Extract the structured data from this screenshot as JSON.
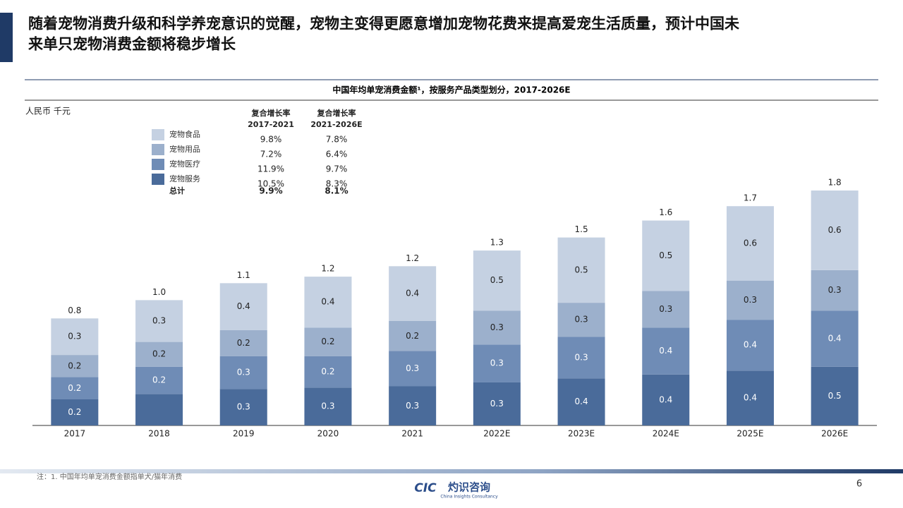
{
  "header": {
    "title": [
      "随着宠物消费升级和科学养宠意识的觉醒，宠物主变得更愿意增加宠物花费来提高爱宠生活质量，预计中国未",
      "来单只宠物消费金额将稳步增长"
    ]
  },
  "chart_data": {
    "type": "stacked-bar",
    "title": "中国年均单宠消费金额¹，按服务产品类型划分，2017-2026E",
    "unit": "人民币 千元",
    "categories": [
      "2017",
      "2018",
      "2019",
      "2020",
      "2021",
      "2022E",
      "2023E",
      "2024E",
      "2025E",
      "2026E"
    ],
    "series": [
      {
        "name": "宠物食品",
        "color": "#c5d1e2",
        "values": [
          0.28,
          0.32,
          0.36,
          0.39,
          0.42,
          0.46,
          0.5,
          0.54,
          0.57,
          0.61
        ],
        "value_labels": [
          "0.3",
          "0.3",
          "0.4",
          "0.4",
          "0.4",
          "0.5",
          "0.5",
          "0.5",
          "0.6",
          "0.6"
        ]
      },
      {
        "name": "宠物用品",
        "color": "#9cb0cc",
        "values": [
          0.17,
          0.19,
          0.2,
          0.22,
          0.23,
          0.26,
          0.26,
          0.28,
          0.3,
          0.31
        ],
        "value_labels": [
          "0.2",
          "0.2",
          "0.2",
          "0.2",
          "0.2",
          "0.3",
          "0.3",
          "0.3",
          "0.3",
          "0.3"
        ]
      },
      {
        "name": "宠物医疗",
        "color": "#6f8cb6",
        "values": [
          0.17,
          0.21,
          0.25,
          0.24,
          0.27,
          0.29,
          0.32,
          0.36,
          0.39,
          0.43
        ],
        "value_labels": [
          "0.2",
          "0.2",
          "0.3",
          "0.2",
          "0.3",
          "0.3",
          "0.3",
          "0.4",
          "0.4",
          "0.4"
        ]
      },
      {
        "name": "宠物服务",
        "color": "#4a6b9a",
        "values": [
          0.2,
          0.24,
          0.28,
          0.29,
          0.3,
          0.33,
          0.36,
          0.39,
          0.42,
          0.45
        ],
        "value_labels": [
          "0.2",
          null,
          "0.3",
          "0.3",
          "0.3",
          "0.3",
          "0.4",
          "0.4",
          "0.4",
          "0.5"
        ]
      }
    ],
    "totals": {
      "values": [
        0.8,
        1.0,
        1.1,
        1.2,
        1.2,
        1.3,
        1.5,
        1.6,
        1.7,
        1.8
      ],
      "value_labels": [
        "0.8",
        "1.0",
        "1.1",
        "1.2",
        "1.2",
        "1.3",
        "1.5",
        "1.6",
        "1.7",
        "1.8"
      ]
    },
    "cagr": {
      "headers": [
        [
          "复合增长率",
          "2017-2021"
        ],
        [
          "复合增长率",
          "2021-2026E"
        ]
      ],
      "rows": [
        [
          "9.8%",
          "7.8%"
        ],
        [
          "7.2%",
          "6.4%"
        ],
        [
          "11.9%",
          "9.7%"
        ],
        [
          "10.5%",
          "8.3%"
        ]
      ],
      "total_name": "总计",
      "total": [
        "9.9%",
        "8.1%"
      ]
    }
  },
  "footer": {
    "note": "注：1. 中国年均单宠消费金额指单犬/猫年消费",
    "logo_mark": "CIC",
    "logo_name": "灼识咨询",
    "logo_sub": "China Insights Consultancy",
    "page_number": 6
  }
}
